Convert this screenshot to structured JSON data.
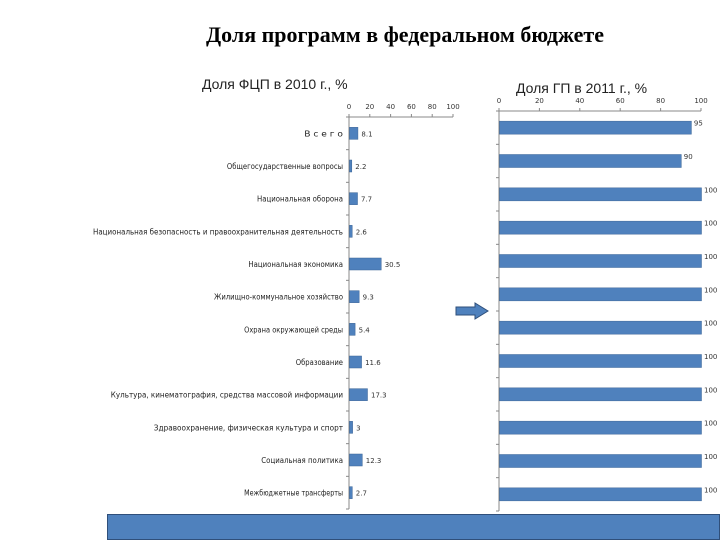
{
  "page": {
    "title": "Доля программ в федеральном бюджете"
  },
  "colors": {
    "bar": "#4f81bd",
    "bar_stroke": "#3a6496",
    "axis": "#888888",
    "footer": "#4f81bd"
  },
  "chart_data": [
    {
      "type": "bar",
      "orientation": "horizontal",
      "title": "Доля ФЦП в 2010 г., %",
      "xlim": [
        0,
        100
      ],
      "x_ticks": [
        "0",
        "20",
        "40",
        "60",
        "80",
        "100"
      ],
      "categories": [
        "В с е г о",
        "Общегосударственные вопросы",
        "Национальная оборона",
        "Национальная безопасность и правоохранительная деятельность",
        "Национальная экономика",
        "Жилищно-коммунальное хозяйство",
        "Охрана окружающей среды",
        "Образование",
        "Культура, кинематография, средства массовой информации",
        "Здравоохранение, физическая культура и спорт",
        "Социальная политика",
        "Межбюджетные трансферты"
      ],
      "values": [
        8.1,
        2.2,
        7.7,
        2.6,
        30.5,
        9.3,
        5.4,
        11.6,
        17.3,
        3,
        12.3,
        2.7
      ],
      "value_labels": [
        "8.1",
        "2.2",
        "7.7",
        "2.6",
        "30.5",
        "9.3",
        "5.4",
        "11.6",
        "17.3",
        "3",
        "12.3",
        "2.7"
      ]
    },
    {
      "type": "bar",
      "orientation": "horizontal",
      "title": "Доля ГП в 2011 г., %",
      "xlim": [
        0,
        100
      ],
      "x_ticks": [
        "0",
        "20",
        "40",
        "60",
        "80",
        "100"
      ],
      "values": [
        95,
        90,
        100,
        100,
        100,
        100,
        100,
        100,
        100,
        100,
        100,
        100
      ],
      "value_labels": [
        "95",
        "90",
        "100",
        "100",
        "100",
        "100",
        "100",
        "100",
        "100",
        "100",
        "100",
        "100"
      ]
    }
  ]
}
